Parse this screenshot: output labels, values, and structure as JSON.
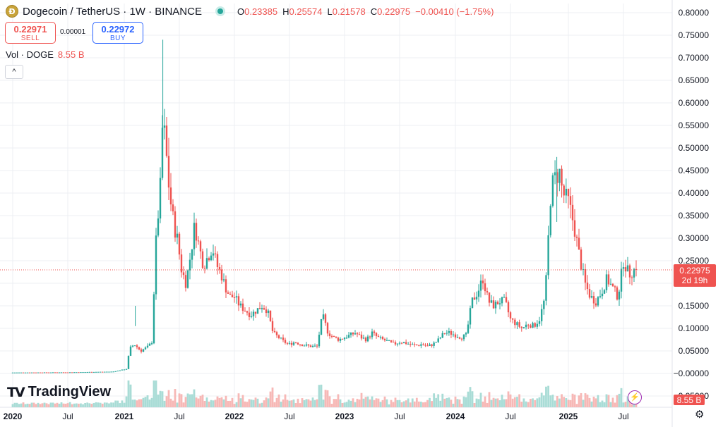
{
  "header": {
    "coin_letter": "Ð",
    "symbol": "Dogecoin / TetherUS · 1W · BINANCE",
    "ohlc": [
      {
        "k": "O",
        "v": "0.23385"
      },
      {
        "k": "H",
        "v": "0.25574"
      },
      {
        "k": "L",
        "v": "0.21578"
      },
      {
        "k": "C",
        "v": "0.22975"
      }
    ],
    "change": "−0.00410 (−1.75%)"
  },
  "trade": {
    "sell_price": "0.22971",
    "sell_label": "SELL",
    "spread": "0.00001",
    "buy_price": "0.22972",
    "buy_label": "BUY"
  },
  "volume": {
    "label": "Vol · DOGE",
    "value": "8.55 B"
  },
  "controls": {
    "collapse_glyph": "^",
    "bolt_glyph": "⚡",
    "settings_glyph": "⚙"
  },
  "branding": {
    "mark": "TV",
    "text": "TradingView"
  },
  "colors": {
    "up": "#26a69a",
    "down": "#ef5350",
    "up_vol": "#a9dcd6",
    "down_vol": "#f7b8b6",
    "grid": "#eceff3",
    "price_line": "#ef5350"
  },
  "chart_data": {
    "type": "candlestick",
    "title": "Dogecoin / TetherUS · 1W · BINANCE",
    "ylim": [
      -0.06,
      0.8
    ],
    "y_ticks": [
      "0.80000",
      "0.75000",
      "0.70000",
      "0.65000",
      "0.60000",
      "0.55000",
      "0.50000",
      "0.45000",
      "0.40000",
      "0.35000",
      "0.30000",
      "0.25000",
      "0.20000",
      "0.15000",
      "0.10000",
      "0.05000",
      "−0.00000",
      "−0.05000"
    ],
    "x_ticks": [
      "2020",
      "Jul",
      "2021",
      "Jul",
      "2022",
      "Jul",
      "2023",
      "Jul",
      "2024",
      "Jul",
      "2025",
      "Jul"
    ],
    "x_tick_values": [
      2020.0,
      2020.5,
      2021.0,
      2021.5,
      2022.0,
      2022.5,
      2023.0,
      2023.5,
      2024.0,
      2024.5,
      2025.0,
      2025.5
    ],
    "x_range": [
      2020.0,
      2025.75
    ],
    "last_price": "0.22975",
    "countdown": "2d 19h",
    "last_volume": "8.55 B",
    "close_series": [
      [
        2020.0,
        0.002
      ],
      [
        2020.5,
        0.0025
      ],
      [
        2020.9,
        0.004
      ],
      [
        2021.02,
        0.01
      ],
      [
        2021.05,
        0.055
      ],
      [
        2021.09,
        0.065
      ],
      [
        2021.15,
        0.05
      ],
      [
        2021.22,
        0.06
      ],
      [
        2021.25,
        0.07
      ],
      [
        2021.29,
        0.3
      ],
      [
        2021.33,
        0.42
      ],
      [
        2021.35,
        0.57
      ],
      [
        2021.38,
        0.49
      ],
      [
        2021.41,
        0.4
      ],
      [
        2021.45,
        0.33
      ],
      [
        2021.48,
        0.3
      ],
      [
        2021.52,
        0.23
      ],
      [
        2021.56,
        0.2
      ],
      [
        2021.6,
        0.26
      ],
      [
        2021.64,
        0.33
      ],
      [
        2021.68,
        0.28
      ],
      [
        2021.72,
        0.24
      ],
      [
        2021.76,
        0.26
      ],
      [
        2021.8,
        0.28
      ],
      [
        2021.84,
        0.24
      ],
      [
        2021.88,
        0.22
      ],
      [
        2021.92,
        0.19
      ],
      [
        2021.96,
        0.17
      ],
      [
        2022.0,
        0.17
      ],
      [
        2022.05,
        0.15
      ],
      [
        2022.1,
        0.14
      ],
      [
        2022.15,
        0.13
      ],
      [
        2022.2,
        0.14
      ],
      [
        2022.25,
        0.15
      ],
      [
        2022.3,
        0.14
      ],
      [
        2022.35,
        0.09
      ],
      [
        2022.4,
        0.08
      ],
      [
        2022.45,
        0.07
      ],
      [
        2022.5,
        0.065
      ],
      [
        2022.55,
        0.07
      ],
      [
        2022.6,
        0.065
      ],
      [
        2022.65,
        0.062
      ],
      [
        2022.7,
        0.06
      ],
      [
        2022.75,
        0.06
      ],
      [
        2022.8,
        0.13
      ],
      [
        2022.85,
        0.09
      ],
      [
        2022.9,
        0.08
      ],
      [
        2022.95,
        0.075
      ],
      [
        2023.0,
        0.08
      ],
      [
        2023.05,
        0.085
      ],
      [
        2023.1,
        0.09
      ],
      [
        2023.15,
        0.08
      ],
      [
        2023.2,
        0.075
      ],
      [
        2023.25,
        0.09
      ],
      [
        2023.3,
        0.08
      ],
      [
        2023.35,
        0.075
      ],
      [
        2023.4,
        0.07
      ],
      [
        2023.45,
        0.065
      ],
      [
        2023.5,
        0.07
      ],
      [
        2023.55,
        0.068
      ],
      [
        2023.6,
        0.064
      ],
      [
        2023.65,
        0.062
      ],
      [
        2023.7,
        0.065
      ],
      [
        2023.75,
        0.06
      ],
      [
        2023.8,
        0.065
      ],
      [
        2023.85,
        0.075
      ],
      [
        2023.9,
        0.09
      ],
      [
        2023.95,
        0.09
      ],
      [
        2024.0,
        0.085
      ],
      [
        2024.05,
        0.08
      ],
      [
        2024.1,
        0.085
      ],
      [
        2024.15,
        0.16
      ],
      [
        2024.2,
        0.18
      ],
      [
        2024.25,
        0.21
      ],
      [
        2024.3,
        0.16
      ],
      [
        2024.35,
        0.15
      ],
      [
        2024.4,
        0.16
      ],
      [
        2024.45,
        0.16
      ],
      [
        2024.5,
        0.12
      ],
      [
        2024.55,
        0.11
      ],
      [
        2024.6,
        0.1
      ],
      [
        2024.65,
        0.11
      ],
      [
        2024.7,
        0.105
      ],
      [
        2024.75,
        0.12
      ],
      [
        2024.8,
        0.17
      ],
      [
        2024.85,
        0.41
      ],
      [
        2024.88,
        0.43
      ],
      [
        2024.92,
        0.45
      ],
      [
        2024.95,
        0.4
      ],
      [
        2025.0,
        0.38
      ],
      [
        2025.05,
        0.33
      ],
      [
        2025.1,
        0.26
      ],
      [
        2025.15,
        0.2
      ],
      [
        2025.2,
        0.17
      ],
      [
        2025.25,
        0.16
      ],
      [
        2025.3,
        0.18
      ],
      [
        2025.35,
        0.21
      ],
      [
        2025.4,
        0.19
      ],
      [
        2025.45,
        0.17
      ],
      [
        2025.5,
        0.25
      ],
      [
        2025.55,
        0.22
      ],
      [
        2025.6,
        0.23
      ]
    ]
  }
}
